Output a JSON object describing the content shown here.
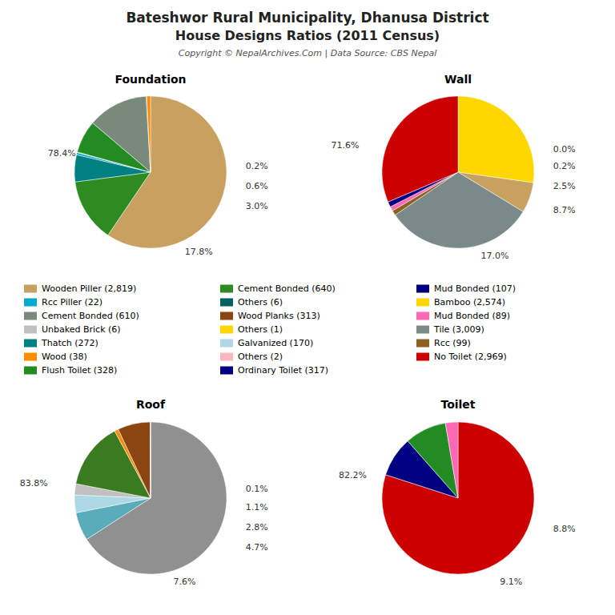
{
  "title": "Bateshwor Rural Municipality, Dhanusa District",
  "subtitle": "House Designs Ratios (2011 Census)",
  "annotations": [
    "Copyright © NepalArchives.Com | Data Source: CBS Nepal"
  ],
  "series": [
    {
      "name": "Wooden Piller (2,819)",
      "color": "#C8A060"
    },
    {
      "name": "Rcc Piller (22)",
      "color": "#00AACC"
    },
    {
      "name": "Cement Bonded (610)",
      "color": "#7A8A7A"
    },
    {
      "name": "Unbaked Brick (6)",
      "color": "#C0C0C0"
    },
    {
      "name": "Thatch (272)",
      "color": "#008080"
    },
    {
      "name": "Wood (38)",
      "color": "#FF8C00"
    },
    {
      "name": "Flush Toilet (328)",
      "color": "#228B22"
    },
    {
      "name": "Cement Bonded (640)",
      "color": "#2E8B22"
    },
    {
      "name": "Others (6)",
      "color": "#006060"
    },
    {
      "name": "Wood Planks (313)",
      "color": "#8B4513"
    },
    {
      "name": "Others (1)",
      "color": "#FFD700"
    },
    {
      "name": "Galvanized (170)",
      "color": "#ADD8E6"
    },
    {
      "name": "Others (2)",
      "color": "#FFB6C1"
    },
    {
      "name": "Ordinary Toilet (317)",
      "color": "#000080"
    },
    {
      "name": "Mud Bonded (107)",
      "color": "#000080"
    },
    {
      "name": "Bamboo (2,574)",
      "color": "#FFD700"
    },
    {
      "name": "Mud Bonded (89)",
      "color": "#FF69B4"
    },
    {
      "name": "Tile (3,009)",
      "color": "#7A8A8A"
    },
    {
      "name": "Rcc (99)",
      "color": "#8B6020"
    },
    {
      "name": "No Toilet (2,969)",
      "color": "#CC0000"
    }
  ],
  "chart_data": [
    {
      "type": "pie",
      "title": "Foundation",
      "values": [
        2819,
        640,
        272,
        22,
        6,
        328,
        610,
        6,
        38
      ],
      "colors": [
        "#C8A060",
        "#2E8B22",
        "#008080",
        "#00AACC",
        "#C0C0C0",
        "#228B22",
        "#7A8A7A",
        "#006060",
        "#FF8C00"
      ],
      "annotations": [
        "78.4%",
        "17.8%",
        "3.0%",
        "0.6%",
        "0.2%"
      ]
    },
    {
      "type": "pie",
      "title": "Wall",
      "values": [
        2574,
        612,
        3009,
        99,
        89,
        107,
        2969
      ],
      "colors": [
        "#FFD700",
        "#C8A060",
        "#7A8A8A",
        "#8B6020",
        "#FF69B4",
        "#000080",
        "#CC0000"
      ],
      "annotations": [
        "71.6%",
        "17.0%",
        "8.7%",
        "2.5%",
        "0.2%",
        "0.0%"
      ]
    },
    {
      "type": "pie",
      "title": "Roof",
      "values": [
        2980,
        272,
        170,
        107,
        640,
        38,
        313,
        1,
        2
      ],
      "colors": [
        "#909090",
        "#5AACBA",
        "#ADD8E6",
        "#C0C0C0",
        "#3A7A20",
        "#FF8C00",
        "#8B4513",
        "#FFD700",
        "#FFB6C1"
      ],
      "annotations": [
        "83.8%",
        "7.6%",
        "4.7%",
        "2.8%",
        "1.1%",
        "0.1%"
      ]
    },
    {
      "type": "pie",
      "title": "Toilet",
      "values": [
        2969,
        317,
        328,
        99
      ],
      "colors": [
        "#CC0000",
        "#000080",
        "#228B22",
        "#FF69B4"
      ],
      "annotations": [
        "82.2%",
        "8.8%",
        "9.1%"
      ]
    }
  ]
}
